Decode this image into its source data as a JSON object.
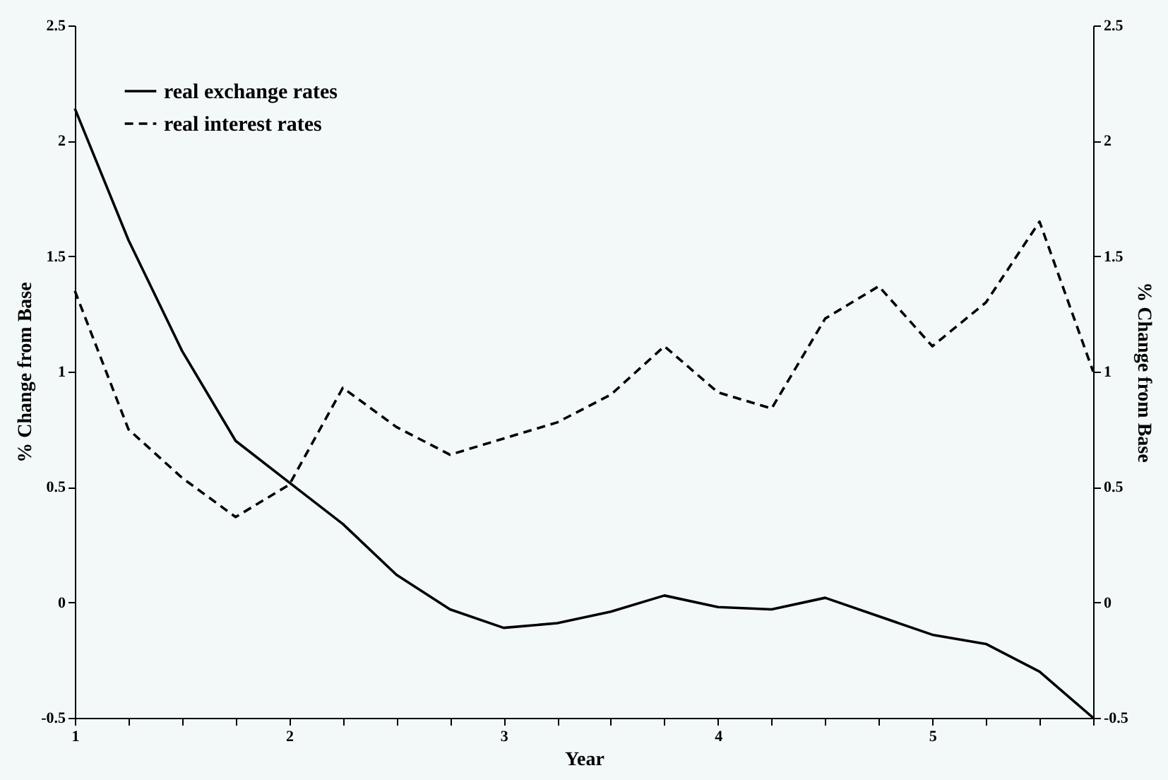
{
  "chart_data": {
    "type": "line",
    "xlabel": "Year",
    "ylabel": "% Change from Base",
    "y2label": "% Change from Base",
    "x": [
      1,
      1.25,
      1.5,
      1.75,
      2,
      2.25,
      2.5,
      2.75,
      3,
      3.25,
      3.5,
      3.75,
      4,
      4.25,
      4.5,
      4.75,
      5,
      5.25,
      5.5,
      5.75
    ],
    "series": [
      {
        "name": "real exchange rates",
        "color": "#000000",
        "line_style": "solid",
        "values": [
          2.14,
          1.57,
          1.09,
          0.7,
          0.52,
          0.34,
          0.12,
          -0.03,
          -0.11,
          -0.09,
          -0.04,
          0.03,
          -0.02,
          -0.03,
          0.02,
          -0.06,
          -0.14,
          -0.18,
          -0.3,
          -0.5
        ]
      },
      {
        "name": "real interest rates",
        "color": "#000000",
        "line_style": "dashed",
        "values": [
          1.35,
          0.75,
          0.54,
          0.37,
          0.51,
          0.93,
          0.76,
          0.64,
          0.71,
          0.78,
          0.9,
          1.11,
          0.91,
          0.84,
          1.23,
          1.37,
          1.11,
          1.3,
          1.65,
          1.0
        ]
      }
    ],
    "xlim": [
      1,
      5.75
    ],
    "xticks": [
      1,
      {
        "value": 1.25,
        "label": null
      },
      {
        "value": 1.5,
        "label": null
      },
      {
        "value": 1.75,
        "label": null
      },
      2,
      {
        "value": 2.25,
        "label": null
      },
      {
        "value": 2.5,
        "label": null
      },
      {
        "value": 2.75,
        "label": null
      },
      3,
      {
        "value": 3.25,
        "label": null
      },
      {
        "value": 3.5,
        "label": null
      },
      {
        "value": 3.75,
        "label": null
      },
      4,
      {
        "value": 4.25,
        "label": null
      },
      {
        "value": 4.5,
        "label": null
      },
      {
        "value": 4.75,
        "label": null
      },
      5,
      {
        "value": 5.25,
        "label": null
      },
      {
        "value": 5.5,
        "label": null
      },
      {
        "value": 5.75,
        "label": null
      }
    ],
    "ylim": [
      -0.5,
      2.5
    ],
    "yticks": [
      -0.5,
      0,
      0.5,
      1,
      1.5,
      2,
      2.5
    ],
    "y2lim": [
      -0.5,
      2.5
    ],
    "y2ticks": [
      -0.5,
      0,
      0.5,
      1,
      1.5,
      2,
      2.5
    ],
    "grid": false,
    "legend": "top left"
  }
}
